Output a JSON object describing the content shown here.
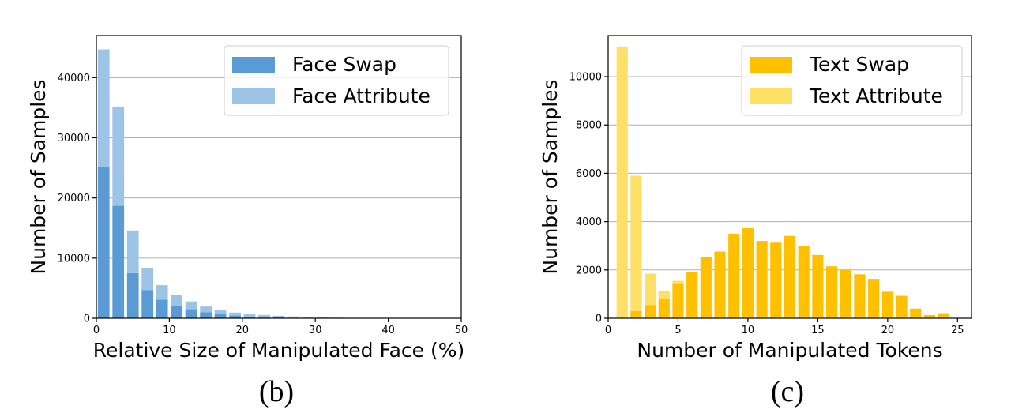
{
  "chart_data": [
    {
      "type": "bar",
      "caption": "(b)",
      "xlabel": "Relative Size of Manipulated Face (%)",
      "ylabel": "Number of Samples",
      "xlim": [
        0,
        50
      ],
      "ylim": [
        0,
        47000
      ],
      "xticks": [
        0,
        10,
        20,
        30,
        40,
        50
      ],
      "yticks": [
        0,
        10000,
        20000,
        30000,
        40000
      ],
      "grid": "horizontal",
      "stacked": true,
      "bar_width": 1.6,
      "legend_position": "top-right",
      "x": [
        1,
        3,
        5,
        7,
        9,
        11,
        13,
        15,
        17,
        19,
        21,
        23,
        25,
        27,
        29,
        31,
        33,
        35
      ],
      "series": [
        {
          "name": "Face Swap",
          "color": "#5b9bd5",
          "values": [
            25200,
            18700,
            7500,
            4700,
            3100,
            2100,
            1500,
            1000,
            700,
            450,
            300,
            200,
            150,
            100,
            80,
            50,
            30,
            20
          ]
        },
        {
          "name": "Face Attribute",
          "color": "#9dc3e6",
          "values": [
            19500,
            16500,
            7100,
            3700,
            2400,
            1700,
            1300,
            950,
            700,
            500,
            400,
            350,
            250,
            200,
            150,
            100,
            80,
            50
          ]
        }
      ]
    },
    {
      "type": "bar",
      "caption": "(c)",
      "xlabel": "Number of Manipulated Tokens",
      "ylabel": "Number of Samples",
      "xlim": [
        0,
        26
      ],
      "ylim": [
        0,
        11700
      ],
      "xticks": [
        0,
        5,
        10,
        15,
        20,
        25
      ],
      "yticks": [
        0,
        2000,
        4000,
        6000,
        8000,
        10000
      ],
      "grid": "horizontal",
      "stacked": true,
      "bar_width": 0.8,
      "legend_position": "top-right",
      "x": [
        1,
        2,
        3,
        4,
        5,
        6,
        7,
        8,
        9,
        10,
        11,
        12,
        13,
        14,
        15,
        16,
        17,
        18,
        19,
        20,
        21,
        22,
        23,
        24,
        25
      ],
      "series": [
        {
          "name": "Text Swap",
          "color": "#ffc000",
          "values": [
            0,
            300,
            550,
            800,
            1450,
            1920,
            2550,
            2760,
            3500,
            3730,
            3200,
            3130,
            3410,
            2990,
            2620,
            2150,
            2000,
            1820,
            1630,
            1100,
            930,
            400,
            130,
            210,
            0
          ]
        },
        {
          "name": "Text Attribute",
          "color": "#ffe066",
          "values": [
            11250,
            5600,
            1300,
            330,
            100,
            0,
            0,
            0,
            0,
            0,
            0,
            0,
            0,
            0,
            0,
            0,
            0,
            0,
            0,
            0,
            0,
            0,
            0,
            0,
            0
          ]
        }
      ]
    }
  ]
}
